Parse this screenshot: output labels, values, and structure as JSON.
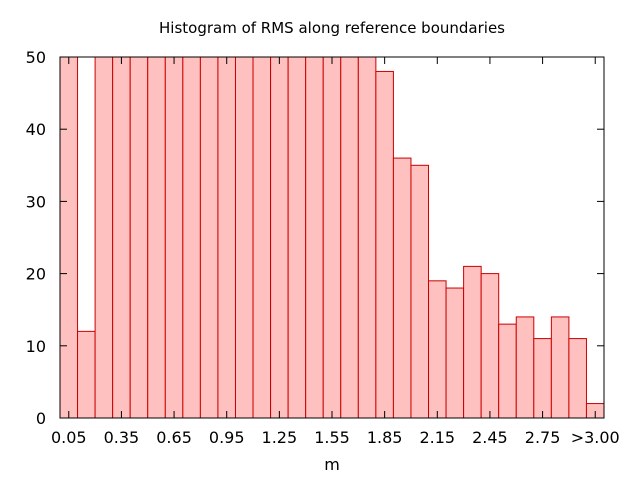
{
  "chart_data": {
    "type": "bar",
    "title": "Histogram of RMS along reference boundaries",
    "xlabel": "m",
    "ylabel": "",
    "ylim": [
      0,
      50
    ],
    "yticks": [
      0,
      10,
      20,
      30,
      40,
      50
    ],
    "xticks": [
      "0.05",
      "0.35",
      "0.65",
      "0.95",
      "1.25",
      "1.55",
      "1.85",
      "2.15",
      "2.45",
      "2.75",
      ">3.00"
    ],
    "bin_width": 0.1,
    "bins": [
      {
        "start": 0.0,
        "value": 50
      },
      {
        "start": 0.1,
        "value": 12
      },
      {
        "start": 0.2,
        "value": 50
      },
      {
        "start": 0.3,
        "value": 50
      },
      {
        "start": 0.4,
        "value": 50
      },
      {
        "start": 0.5,
        "value": 50
      },
      {
        "start": 0.6,
        "value": 50
      },
      {
        "start": 0.7,
        "value": 50
      },
      {
        "start": 0.8,
        "value": 50
      },
      {
        "start": 0.9,
        "value": 50
      },
      {
        "start": 1.0,
        "value": 50
      },
      {
        "start": 1.1,
        "value": 50
      },
      {
        "start": 1.2,
        "value": 50
      },
      {
        "start": 1.3,
        "value": 50
      },
      {
        "start": 1.4,
        "value": 50
      },
      {
        "start": 1.5,
        "value": 50
      },
      {
        "start": 1.6,
        "value": 50
      },
      {
        "start": 1.7,
        "value": 50
      },
      {
        "start": 1.8,
        "value": 48
      },
      {
        "start": 1.9,
        "value": 36
      },
      {
        "start": 2.0,
        "value": 35
      },
      {
        "start": 2.1,
        "value": 19
      },
      {
        "start": 2.2,
        "value": 18
      },
      {
        "start": 2.3,
        "value": 21
      },
      {
        "start": 2.4,
        "value": 20
      },
      {
        "start": 2.5,
        "value": 13
      },
      {
        "start": 2.6,
        "value": 14
      },
      {
        "start": 2.7,
        "value": 11
      },
      {
        "start": 2.8,
        "value": 14
      },
      {
        "start": 2.9,
        "value": 11
      },
      {
        "start": 3.0,
        "value": 2
      }
    ],
    "x_domain": [
      0.0,
      3.1
    ],
    "grid": false,
    "legend": "none",
    "bar_fill": "#ffc0c0",
    "bar_stroke": "#cc0000"
  }
}
